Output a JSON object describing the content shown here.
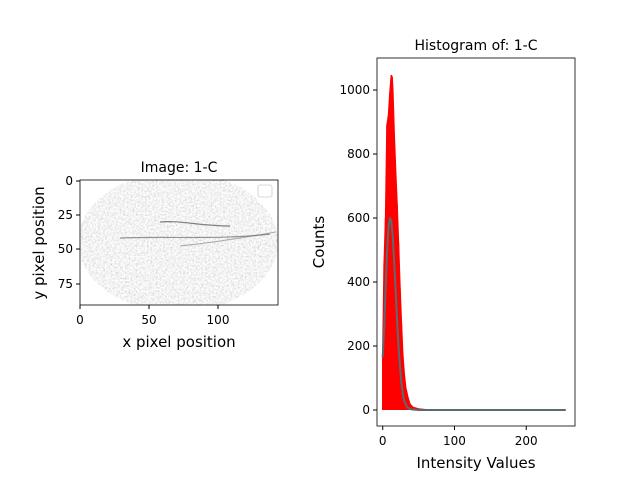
{
  "chart_data": [
    {
      "type": "heatmap",
      "title": "Image: 1-C",
      "xlabel": "x pixel position",
      "ylabel": "y pixel position",
      "xlim": [
        0,
        143
      ],
      "ylim": [
        90,
        0
      ],
      "xticks": [
        "0",
        "50",
        "100"
      ],
      "yticks": [
        "0",
        "25",
        "50",
        "75"
      ],
      "colormap": "grayscale (white = low, black = high)",
      "legend": "empty legend box, top-right"
    },
    {
      "type": "line",
      "title": "Histogram of: 1-C",
      "xlabel": "Intensity Values",
      "ylabel": "Counts",
      "xlim": [
        -8,
        268
      ],
      "ylim": [
        -50,
        1100
      ],
      "xticks": [
        "0",
        "100",
        "200"
      ],
      "yticks": [
        "0",
        "200",
        "400",
        "600",
        "800",
        "1000"
      ],
      "series": [
        {
          "kind": "histogram counts",
          "color": "#ff0000",
          "x": [
            0,
            2,
            4,
            6,
            8,
            10,
            12,
            13,
            14,
            16,
            18,
            20,
            22,
            24,
            26,
            28,
            30,
            32,
            35,
            38,
            42,
            50,
            60,
            80,
            120,
            200,
            255
          ],
          "y": [
            160,
            460,
            600,
            890,
            920,
            990,
            1045,
            1040,
            1000,
            860,
            740,
            640,
            520,
            380,
            270,
            170,
            110,
            70,
            40,
            18,
            8,
            3,
            1,
            0,
            0,
            0,
            0
          ]
        },
        {
          "kind": "fitted curve",
          "color": "#5a6b70",
          "x": [
            0,
            2,
            4,
            6,
            8,
            10,
            12,
            14,
            16,
            18,
            20,
            22,
            24,
            26,
            28,
            30,
            34,
            40,
            50,
            60,
            100,
            200,
            255
          ],
          "y": [
            165,
            260,
            380,
            490,
            570,
            600,
            590,
            540,
            460,
            370,
            280,
            200,
            135,
            85,
            50,
            28,
            8,
            2,
            0,
            0,
            0,
            0,
            0
          ]
        }
      ]
    }
  ]
}
